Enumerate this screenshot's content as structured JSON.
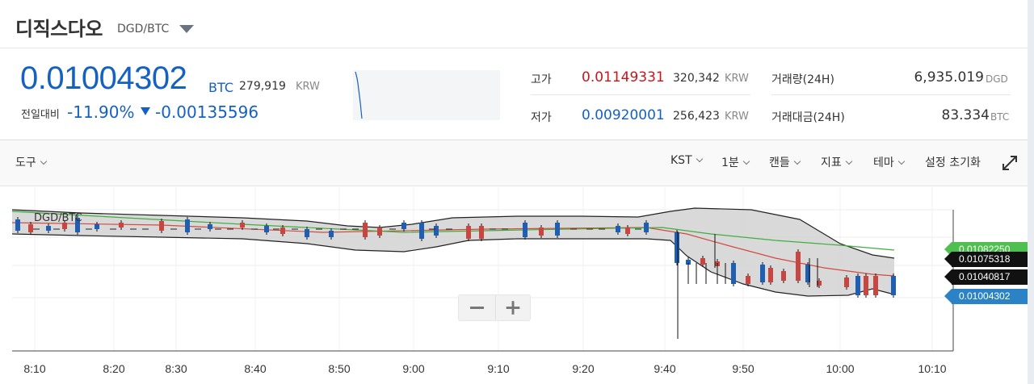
{
  "header": {
    "coin_name": "디직스다오",
    "pair": "DGD/BTC"
  },
  "summary": {
    "price": "0.01004302",
    "price_unit": "BTC",
    "price_krw": "279,919",
    "krw_unit": "KRW",
    "change_label": "전일대비",
    "change_rate": "-11.90%",
    "change_value": "-0.00135596",
    "high_label": "고가",
    "high_value": "0.01149331",
    "high_krw": "320,342",
    "low_label": "저가",
    "low_value": "0.00920001",
    "low_krw": "256,423",
    "volume_label": "거래량(24H)",
    "volume_value": "6,935.019",
    "volume_unit": "DGD",
    "amount_label": "거래대금(24H)",
    "amount_value": "83.334",
    "amount_unit": "BTC"
  },
  "toolbar": {
    "tools_label": "도구",
    "timezone_label": "KST",
    "interval_label": "1분",
    "candle_label": "캔들",
    "indicator_label": "지표",
    "theme_label": "테마",
    "reset_label": "설정 초기화"
  },
  "chart": {
    "symbol": "DGD/BTC",
    "price_tags": [
      {
        "label": "0.01082250",
        "color": "#4fbf4f"
      },
      {
        "label": "0.01075318",
        "color": "#111111"
      },
      {
        "label": "0.01040817",
        "color": "#111111"
      },
      {
        "label": "0.01004302",
        "color": "#2b83c6"
      }
    ],
    "time_labels": [
      "8:10",
      "8:20",
      "8:30",
      "8:40",
      "8:50",
      "9:00",
      "9:10",
      "9:20",
      "9:40",
      "9:50",
      "10:00",
      "10:10"
    ],
    "up_color": "#c8463f",
    "down_color": "#1e5fb4",
    "band_fill": "#d5d5d5",
    "ma_short_color": "#d24b40",
    "ma_long_color": "#3fae3f"
  }
}
